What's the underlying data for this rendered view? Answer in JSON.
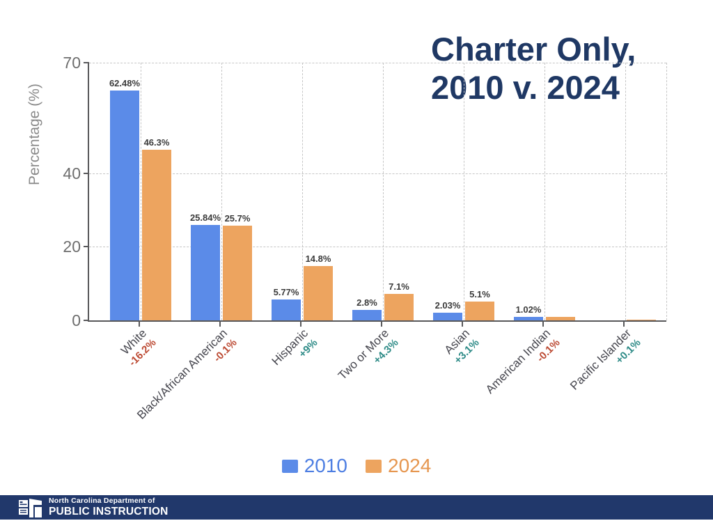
{
  "title": {
    "line1": "Charter Only,",
    "line2": "2010 v. 2024"
  },
  "chart_data": {
    "type": "bar",
    "title": "Charter Only, 2010 v. 2024",
    "ylabel": "Percentage (%)",
    "xlabel": "",
    "ylim": [
      0,
      70
    ],
    "yticks": [
      {
        "value": 0,
        "label": "0"
      },
      {
        "value": 20,
        "label": "20"
      },
      {
        "value": 40,
        "label": "40"
      },
      {
        "value": 70,
        "label": "70"
      }
    ],
    "grid": "dashed",
    "legend_position": "bottom-center",
    "categories": [
      "White",
      "Black/African American",
      "Hispanic",
      "Two or More",
      "Asian",
      "American Indian",
      "Pacific Islander"
    ],
    "series": [
      {
        "name": "2010",
        "color": "#5b8be8",
        "values": [
          62.48,
          25.84,
          5.77,
          2.8,
          2.03,
          1.02,
          0.0
        ],
        "labels": [
          "62.48%",
          "25.84%",
          "5.77%",
          "2.8%",
          "2.03%",
          "1.02%",
          ""
        ]
      },
      {
        "name": "2024",
        "color": "#eda45f",
        "values": [
          46.3,
          25.7,
          14.8,
          7.1,
          5.1,
          0.92,
          0.1
        ],
        "labels": [
          "46.3%",
          "25.7%",
          "14.8%",
          "7.1%",
          "5.1%",
          "",
          ""
        ]
      }
    ],
    "changes": [
      {
        "text": "-16.2%",
        "direction": "negative"
      },
      {
        "text": "-0.1%",
        "direction": "negative"
      },
      {
        "text": "+9%",
        "direction": "positive"
      },
      {
        "text": "+4.3%",
        "direction": "positive"
      },
      {
        "text": "+3.1%",
        "direction": "positive"
      },
      {
        "text": "-0.1%",
        "direction": "negative"
      },
      {
        "text": "+0.1%",
        "direction": "positive"
      }
    ]
  },
  "legend": {
    "items": [
      {
        "label": "2010",
        "color": "#5b8be8",
        "text_color": "#4d7ee2"
      },
      {
        "label": "2024",
        "color": "#eda45f",
        "text_color": "#e6964f"
      }
    ]
  },
  "footer": {
    "org_line1": "North Carolina Department of",
    "org_line2": "PUBLIC INSTRUCTION"
  },
  "colors": {
    "title": "#1f3864",
    "footer_bg": "#21386b",
    "negative": "#bc4a33",
    "positive": "#2e8b87",
    "axis": "#58585a",
    "gridline": "#c6c6c6",
    "bar_label": "#3b3b3b",
    "category_label": "#46464e",
    "ytick_label": "#6e6e6e",
    "yaxis_title": "#8a8a8a"
  }
}
